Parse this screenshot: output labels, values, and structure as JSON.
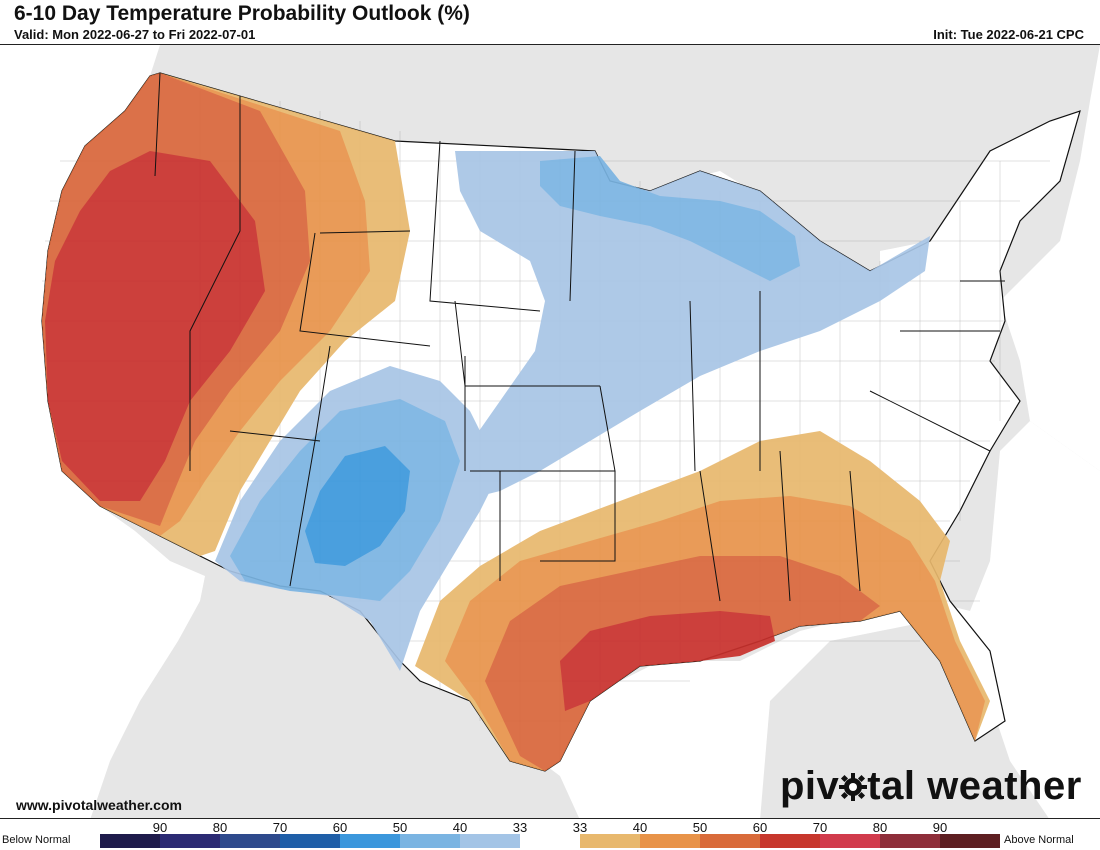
{
  "header": {
    "title": "6-10 Day Temperature Probability Outlook (%)",
    "valid": "Valid: Mon 2022-06-27 to Fri 2022-07-01",
    "init": "Init: Tue 2022-06-21 CPC"
  },
  "footer": {
    "website": "www.pivotalweather.com",
    "logo_before": "piv",
    "logo_after": "tal weather"
  },
  "legend": {
    "below_label": "Below Normal",
    "above_label": "Above Normal",
    "ticks": [
      "90",
      "80",
      "70",
      "60",
      "50",
      "40",
      "33",
      "33",
      "40",
      "50",
      "60",
      "70",
      "80",
      "90"
    ],
    "bins": [
      "#1e1b4b",
      "#2b2a73",
      "#2e4a8c",
      "#1f5fa8",
      "#3b97dc",
      "#7ab4e2",
      "#a3c4e6",
      "#ffffff",
      "#e8b86d",
      "#e89348",
      "#d96b3a",
      "#c7372c",
      "#d13b4c",
      "#8e2e3a",
      "#5e1f22"
    ]
  },
  "colors": {
    "land": "#ffffff",
    "outside": "#e6e6e6",
    "water": "#ffffff",
    "above_40": "#e8b86d",
    "above_50": "#e8934a",
    "above_60": "#d9653a",
    "above_70": "#c8302c",
    "below_40": "#a8c5e6",
    "below_50": "#7ab4e2",
    "below_60": "#3b97dc"
  }
}
